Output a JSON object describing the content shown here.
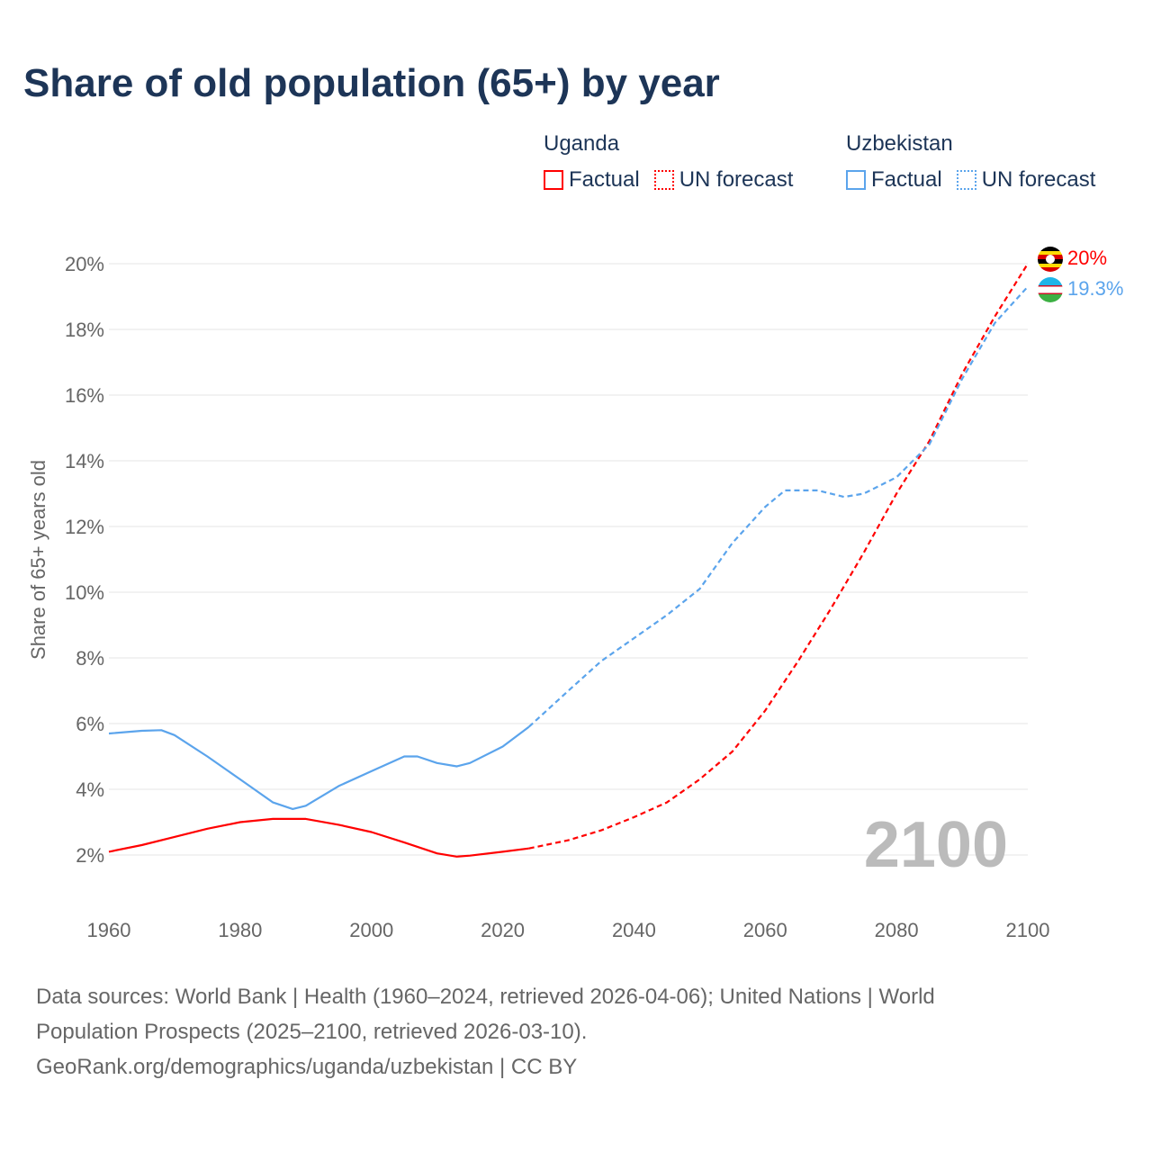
{
  "chart_data": {
    "type": "line",
    "title": "Share of old population (65+) by year",
    "ylabel": "Share of 65+ years old",
    "xlabel": "",
    "xlim": [
      1960,
      2100
    ],
    "ylim": [
      1,
      21
    ],
    "x_ticks": [
      "1960",
      "1980",
      "2000",
      "2020",
      "2040",
      "2060",
      "2080",
      "2100"
    ],
    "y_ticks": [
      "2%",
      "4%",
      "6%",
      "8%",
      "10%",
      "12%",
      "14%",
      "16%",
      "18%",
      "20%"
    ],
    "grid": true,
    "current_year_label": "2100",
    "legend": {
      "placement": "top-right",
      "groups": [
        {
          "country": "Uganda",
          "items": [
            "Factual",
            "UN forecast"
          ],
          "color": "#ff0000"
        },
        {
          "country": "Uzbekistan",
          "items": [
            "Factual",
            "UN forecast"
          ],
          "color": "#5ba4ec"
        }
      ]
    },
    "series": [
      {
        "name": "Uganda Factual",
        "color": "#ff0000",
        "style": "solid",
        "x": [
          1960,
          1965,
          1970,
          1975,
          1980,
          1985,
          1990,
          1995,
          2000,
          2005,
          2010,
          2013,
          2015,
          2020,
          2024
        ],
        "y": [
          2.1,
          2.3,
          2.55,
          2.8,
          3.0,
          3.1,
          3.1,
          2.92,
          2.7,
          2.38,
          2.05,
          1.95,
          1.98,
          2.1,
          2.2
        ]
      },
      {
        "name": "Uganda UN forecast",
        "color": "#ff0000",
        "style": "dashed",
        "x": [
          2024,
          2030,
          2035,
          2040,
          2045,
          2050,
          2055,
          2060,
          2065,
          2070,
          2075,
          2080,
          2085,
          2090,
          2095,
          2100
        ],
        "y": [
          2.2,
          2.45,
          2.75,
          3.15,
          3.6,
          4.3,
          5.15,
          6.4,
          7.9,
          9.5,
          11.2,
          13.0,
          14.6,
          16.65,
          18.4,
          20.0
        ]
      },
      {
        "name": "Uzbekistan Factual",
        "color": "#5ba4ec",
        "style": "solid",
        "x": [
          1960,
          1965,
          1968,
          1970,
          1975,
          1980,
          1985,
          1988,
          1990,
          1995,
          2000,
          2005,
          2007,
          2010,
          2013,
          2015,
          2020,
          2024
        ],
        "y": [
          5.7,
          5.78,
          5.8,
          5.65,
          5.0,
          4.3,
          3.6,
          3.4,
          3.5,
          4.1,
          4.55,
          5.0,
          5.0,
          4.8,
          4.7,
          4.8,
          5.3,
          5.9
        ]
      },
      {
        "name": "Uzbekistan UN forecast",
        "color": "#5ba4ec",
        "style": "dotted",
        "x": [
          2024,
          2030,
          2035,
          2040,
          2045,
          2050,
          2055,
          2060,
          2063,
          2068,
          2072,
          2075,
          2080,
          2085,
          2090,
          2095,
          2100
        ],
        "y": [
          5.9,
          7.0,
          7.9,
          8.6,
          9.3,
          10.1,
          11.5,
          12.6,
          13.1,
          13.1,
          12.9,
          13.0,
          13.5,
          14.5,
          16.5,
          18.2,
          19.3
        ]
      }
    ],
    "end_labels": [
      {
        "country": "Uganda",
        "text": "20%",
        "color": "#ff0000"
      },
      {
        "country": "Uzbekistan",
        "text": "19.3%",
        "color": "#5ba4ec"
      }
    ]
  },
  "footer": {
    "line1": "Data sources: World Bank | Health (1960–2024, retrieved 2026-04-06); United Nations | World",
    "line2": "Population Prospects (2025–2100, retrieved 2026-03-10).",
    "line3": "GeoRank.org/demographics/uganda/uzbekistan | CC BY"
  }
}
